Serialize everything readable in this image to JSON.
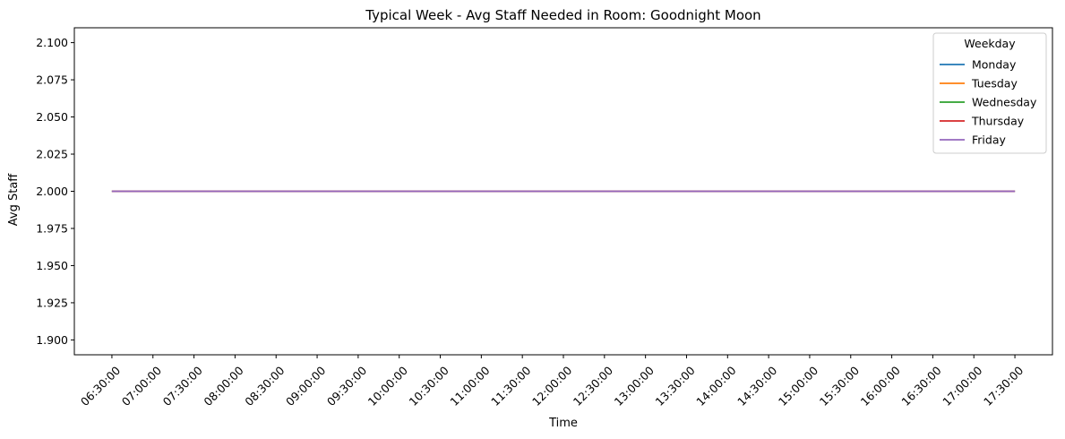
{
  "chart_data": {
    "type": "line",
    "title": "Typical Week - Avg Staff Needed in Room: Goodnight Moon",
    "xlabel": "Time",
    "ylabel": "Avg Staff",
    "x": [
      "06:30:00",
      "07:00:00",
      "07:30:00",
      "08:00:00",
      "08:30:00",
      "09:00:00",
      "09:30:00",
      "10:00:00",
      "10:30:00",
      "11:00:00",
      "11:30:00",
      "12:00:00",
      "12:30:00",
      "13:00:00",
      "13:30:00",
      "14:00:00",
      "14:30:00",
      "15:00:00",
      "15:30:00",
      "16:00:00",
      "16:30:00",
      "17:00:00",
      "17:30:00"
    ],
    "ylim": [
      1.89,
      2.11
    ],
    "yticks": [
      "1.900",
      "1.925",
      "1.950",
      "1.975",
      "2.000",
      "2.025",
      "2.050",
      "2.075",
      "2.100"
    ],
    "legend_title": "Weekday",
    "legend_position": "top-right",
    "grid": false,
    "series": [
      {
        "name": "Monday",
        "color": "#1f77b4",
        "values": [
          2,
          2,
          2,
          2,
          2,
          2,
          2,
          2,
          2,
          2,
          2,
          2,
          2,
          2,
          2,
          2,
          2,
          2,
          2,
          2,
          2,
          2,
          2
        ]
      },
      {
        "name": "Tuesday",
        "color": "#ff7f0e",
        "values": [
          2,
          2,
          2,
          2,
          2,
          2,
          2,
          2,
          2,
          2,
          2,
          2,
          2,
          2,
          2,
          2,
          2,
          2,
          2,
          2,
          2,
          2,
          2
        ]
      },
      {
        "name": "Wednesday",
        "color": "#2ca02c",
        "values": [
          2,
          2,
          2,
          2,
          2,
          2,
          2,
          2,
          2,
          2,
          2,
          2,
          2,
          2,
          2,
          2,
          2,
          2,
          2,
          2,
          2,
          2,
          2
        ]
      },
      {
        "name": "Thursday",
        "color": "#d62728",
        "values": [
          2,
          2,
          2,
          2,
          2,
          2,
          2,
          2,
          2,
          2,
          2,
          2,
          2,
          2,
          2,
          2,
          2,
          2,
          2,
          2,
          2,
          2,
          2
        ]
      },
      {
        "name": "Friday",
        "color": "#9467bd",
        "values": [
          2,
          2,
          2,
          2,
          2,
          2,
          2,
          2,
          2,
          2,
          2,
          2,
          2,
          2,
          2,
          2,
          2,
          2,
          2,
          2,
          2,
          2,
          2
        ]
      }
    ]
  }
}
